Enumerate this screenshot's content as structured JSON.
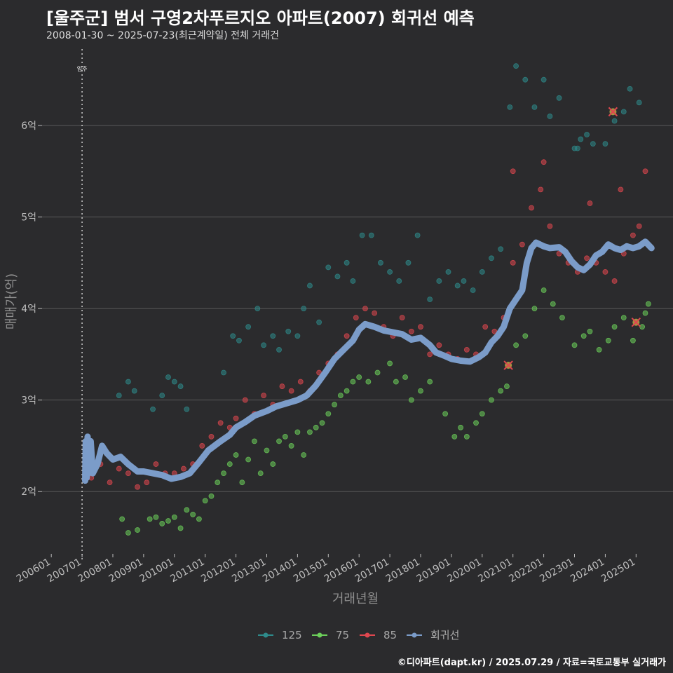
{
  "header": {
    "title": "[울주군] 범서 구영2차푸르지오 아파트(2007) 회귀선 예측",
    "subtitle": "2008-01-30 ~ 2025-07-23(최근계약일) 전체 거래건"
  },
  "caption": "©디아파트(dapt.kr) / 2025.07.29 / 자료=국토교통부 실거래가",
  "colors": {
    "background": "#2b2b2d",
    "gridline": "#5a5a5a",
    "s125": "#2e8b8b",
    "s75": "#6ccf5a",
    "s85": "#e0474f",
    "regression": "#7b9cc9"
  },
  "chart_data": {
    "type": "scatter",
    "title": "[울주군] 범서 구영2차푸르지오 아파트(2007) 회귀선 예측",
    "xlabel": "거래년월",
    "ylabel": "매매가(억)",
    "xlim": [
      2005.7,
      2026.2
    ],
    "ylim": [
      1.32,
      6.85
    ],
    "x_ticks": [
      {
        "label": "200601",
        "x": 2006.0
      },
      {
        "label": "200701",
        "x": 2007.0
      },
      {
        "label": "200801",
        "x": 2008.0
      },
      {
        "label": "200901",
        "x": 2009.0
      },
      {
        "label": "201001",
        "x": 2010.0
      },
      {
        "label": "201101",
        "x": 2011.0
      },
      {
        "label": "201201",
        "x": 2012.0
      },
      {
        "label": "201301",
        "x": 2013.0
      },
      {
        "label": "201401",
        "x": 2014.0
      },
      {
        "label": "201501",
        "x": 2015.0
      },
      {
        "label": "201601",
        "x": 2016.0
      },
      {
        "label": "201701",
        "x": 2017.0
      },
      {
        "label": "201801",
        "x": 2018.0
      },
      {
        "label": "201901",
        "x": 2019.0
      },
      {
        "label": "202001",
        "x": 2020.0
      },
      {
        "label": "202101",
        "x": 2021.0
      },
      {
        "label": "202201",
        "x": 2022.0
      },
      {
        "label": "202301",
        "x": 2023.0
      },
      {
        "label": "202401",
        "x": 2024.0
      },
      {
        "label": "202501",
        "x": 2025.0
      }
    ],
    "y_ticks": [
      {
        "label": "2억",
        "y": 2
      },
      {
        "label": "3억",
        "y": 3
      },
      {
        "label": "4억",
        "y": 4
      },
      {
        "label": "5억",
        "y": 5
      },
      {
        "label": "6억",
        "y": 6
      }
    ],
    "grid": true,
    "legend_position": "bottom",
    "annotations": [
      {
        "label": "입주",
        "x": 2007.0
      }
    ],
    "highlights": [
      {
        "series": "85",
        "x": 2020.85,
        "y": 3.38
      },
      {
        "series": "85",
        "x": 2024.25,
        "y": 6.15
      },
      {
        "series": "85",
        "x": 2025.0,
        "y": 3.85
      }
    ],
    "series": [
      {
        "name": "125",
        "color": "#2e8b8b",
        "points": [
          [
            2008.2,
            3.05
          ],
          [
            2008.5,
            3.2
          ],
          [
            2008.7,
            3.1
          ],
          [
            2009.3,
            2.9
          ],
          [
            2009.6,
            3.05
          ],
          [
            2009.8,
            3.25
          ],
          [
            2010.0,
            3.2
          ],
          [
            2010.2,
            3.15
          ],
          [
            2010.4,
            2.9
          ],
          [
            2011.6,
            3.3
          ],
          [
            2011.9,
            3.7
          ],
          [
            2012.1,
            3.65
          ],
          [
            2012.4,
            3.8
          ],
          [
            2012.7,
            4.0
          ],
          [
            2012.9,
            3.6
          ],
          [
            2013.2,
            3.7
          ],
          [
            2013.4,
            3.55
          ],
          [
            2013.7,
            3.75
          ],
          [
            2014.0,
            3.7
          ],
          [
            2014.2,
            4.0
          ],
          [
            2014.4,
            4.25
          ],
          [
            2014.7,
            3.85
          ],
          [
            2015.0,
            4.45
          ],
          [
            2015.3,
            4.35
          ],
          [
            2015.6,
            4.5
          ],
          [
            2015.8,
            4.3
          ],
          [
            2016.1,
            4.8
          ],
          [
            2016.4,
            4.8
          ],
          [
            2016.7,
            4.5
          ],
          [
            2017.0,
            4.4
          ],
          [
            2017.3,
            4.3
          ],
          [
            2017.6,
            4.5
          ],
          [
            2017.9,
            4.8
          ],
          [
            2018.3,
            4.1
          ],
          [
            2018.6,
            4.3
          ],
          [
            2018.9,
            4.4
          ],
          [
            2019.2,
            4.25
          ],
          [
            2019.4,
            4.3
          ],
          [
            2019.7,
            4.2
          ],
          [
            2020.0,
            4.4
          ],
          [
            2020.3,
            4.55
          ],
          [
            2020.6,
            4.65
          ],
          [
            2020.9,
            6.2
          ],
          [
            2021.1,
            6.65
          ],
          [
            2021.4,
            6.5
          ],
          [
            2021.7,
            6.2
          ],
          [
            2022.0,
            6.5
          ],
          [
            2022.2,
            6.1
          ],
          [
            2023.0,
            5.75
          ],
          [
            2023.2,
            5.85
          ],
          [
            2023.4,
            5.9
          ],
          [
            2023.6,
            5.8
          ],
          [
            2024.0,
            5.8
          ],
          [
            2024.3,
            6.05
          ],
          [
            2024.6,
            6.15
          ],
          [
            2024.8,
            6.4
          ],
          [
            2025.1,
            6.25
          ],
          [
            2022.5,
            6.3
          ],
          [
            2023.1,
            5.75
          ]
        ]
      },
      {
        "name": "75",
        "color": "#6ccf5a",
        "points": [
          [
            2008.3,
            1.7
          ],
          [
            2008.5,
            1.55
          ],
          [
            2008.8,
            1.58
          ],
          [
            2009.2,
            1.7
          ],
          [
            2009.4,
            1.72
          ],
          [
            2009.6,
            1.65
          ],
          [
            2009.8,
            1.68
          ],
          [
            2010.0,
            1.72
          ],
          [
            2010.2,
            1.6
          ],
          [
            2010.4,
            1.8
          ],
          [
            2010.6,
            1.75
          ],
          [
            2010.8,
            1.7
          ],
          [
            2011.0,
            1.9
          ],
          [
            2011.2,
            1.95
          ],
          [
            2011.4,
            2.1
          ],
          [
            2011.6,
            2.2
          ],
          [
            2011.8,
            2.3
          ],
          [
            2012.0,
            2.4
          ],
          [
            2012.2,
            2.1
          ],
          [
            2012.4,
            2.35
          ],
          [
            2012.6,
            2.55
          ],
          [
            2012.8,
            2.2
          ],
          [
            2013.0,
            2.45
          ],
          [
            2013.2,
            2.3
          ],
          [
            2013.4,
            2.55
          ],
          [
            2013.6,
            2.6
          ],
          [
            2013.8,
            2.5
          ],
          [
            2014.0,
            2.65
          ],
          [
            2014.2,
            2.4
          ],
          [
            2014.4,
            2.65
          ],
          [
            2014.6,
            2.7
          ],
          [
            2014.8,
            2.75
          ],
          [
            2015.0,
            2.85
          ],
          [
            2015.2,
            2.95
          ],
          [
            2015.4,
            3.05
          ],
          [
            2015.6,
            3.1
          ],
          [
            2015.8,
            3.2
          ],
          [
            2016.0,
            3.25
          ],
          [
            2016.3,
            3.2
          ],
          [
            2016.6,
            3.3
          ],
          [
            2017.0,
            3.4
          ],
          [
            2017.2,
            3.2
          ],
          [
            2017.5,
            3.25
          ],
          [
            2017.7,
            3.0
          ],
          [
            2018.0,
            3.1
          ],
          [
            2018.3,
            3.2
          ],
          [
            2018.8,
            2.85
          ],
          [
            2019.1,
            2.6
          ],
          [
            2019.3,
            2.7
          ],
          [
            2019.5,
            2.6
          ],
          [
            2019.8,
            2.75
          ],
          [
            2020.0,
            2.85
          ],
          [
            2020.3,
            3.0
          ],
          [
            2020.6,
            3.1
          ],
          [
            2020.8,
            3.15
          ],
          [
            2021.1,
            3.6
          ],
          [
            2021.4,
            3.7
          ],
          [
            2021.7,
            4.0
          ],
          [
            2022.0,
            4.2
          ],
          [
            2022.3,
            4.05
          ],
          [
            2022.6,
            3.9
          ],
          [
            2023.0,
            3.6
          ],
          [
            2023.3,
            3.7
          ],
          [
            2023.5,
            3.75
          ],
          [
            2023.8,
            3.55
          ],
          [
            2024.1,
            3.65
          ],
          [
            2024.3,
            3.8
          ],
          [
            2024.6,
            3.9
          ],
          [
            2024.9,
            3.65
          ],
          [
            2025.2,
            3.8
          ],
          [
            2025.4,
            4.05
          ],
          [
            2025.3,
            3.95
          ]
        ]
      },
      {
        "name": "85",
        "color": "#e0474f",
        "points": [
          [
            2007.3,
            2.15
          ],
          [
            2007.6,
            2.3
          ],
          [
            2007.9,
            2.1
          ],
          [
            2008.2,
            2.25
          ],
          [
            2008.5,
            2.2
          ],
          [
            2008.8,
            2.05
          ],
          [
            2009.1,
            2.1
          ],
          [
            2009.4,
            2.3
          ],
          [
            2009.7,
            2.2
          ],
          [
            2010.0,
            2.2
          ],
          [
            2010.3,
            2.25
          ],
          [
            2010.6,
            2.3
          ],
          [
            2010.9,
            2.5
          ],
          [
            2011.2,
            2.6
          ],
          [
            2011.5,
            2.75
          ],
          [
            2011.8,
            2.7
          ],
          [
            2012.0,
            2.8
          ],
          [
            2012.3,
            3.0
          ],
          [
            2012.6,
            2.85
          ],
          [
            2012.9,
            3.05
          ],
          [
            2013.2,
            2.95
          ],
          [
            2013.5,
            3.15
          ],
          [
            2013.8,
            3.1
          ],
          [
            2014.1,
            3.2
          ],
          [
            2014.4,
            3.1
          ],
          [
            2014.7,
            3.3
          ],
          [
            2015.0,
            3.4
          ],
          [
            2015.3,
            3.5
          ],
          [
            2015.6,
            3.7
          ],
          [
            2015.9,
            3.9
          ],
          [
            2016.2,
            4.0
          ],
          [
            2016.5,
            3.95
          ],
          [
            2016.8,
            3.8
          ],
          [
            2017.1,
            3.7
          ],
          [
            2017.4,
            3.9
          ],
          [
            2017.7,
            3.75
          ],
          [
            2018.0,
            3.8
          ],
          [
            2018.3,
            3.5
          ],
          [
            2018.6,
            3.6
          ],
          [
            2018.9,
            3.5
          ],
          [
            2019.2,
            3.45
          ],
          [
            2019.5,
            3.55
          ],
          [
            2019.8,
            3.5
          ],
          [
            2020.1,
            3.8
          ],
          [
            2020.4,
            3.75
          ],
          [
            2020.7,
            3.9
          ],
          [
            2021.0,
            4.5
          ],
          [
            2021.3,
            4.7
          ],
          [
            2021.6,
            5.1
          ],
          [
            2021.9,
            5.3
          ],
          [
            2022.2,
            4.9
          ],
          [
            2022.5,
            4.6
          ],
          [
            2022.8,
            4.5
          ],
          [
            2023.1,
            4.4
          ],
          [
            2023.4,
            4.55
          ],
          [
            2023.7,
            4.5
          ],
          [
            2024.0,
            4.4
          ],
          [
            2024.3,
            4.3
          ],
          [
            2024.6,
            4.6
          ],
          [
            2024.9,
            4.8
          ],
          [
            2025.1,
            4.9
          ],
          [
            2025.3,
            5.5
          ],
          [
            2021.0,
            5.5
          ],
          [
            2022.0,
            5.6
          ],
          [
            2023.5,
            5.15
          ],
          [
            2024.5,
            5.3
          ]
        ]
      }
    ],
    "regression": {
      "name": "회귀선",
      "color": "#7b9cc9",
      "points": [
        [
          2007.1,
          2.12
        ],
        [
          2007.12,
          2.55
        ],
        [
          2007.15,
          2.15
        ],
        [
          2007.18,
          2.6
        ],
        [
          2007.22,
          2.2
        ],
        [
          2007.28,
          2.55
        ],
        [
          2007.35,
          2.2
        ],
        [
          2007.5,
          2.3
        ],
        [
          2007.65,
          2.5
        ],
        [
          2007.8,
          2.42
        ],
        [
          2008.0,
          2.35
        ],
        [
          2008.25,
          2.38
        ],
        [
          2008.5,
          2.3
        ],
        [
          2008.8,
          2.22
        ],
        [
          2009.0,
          2.22
        ],
        [
          2009.3,
          2.2
        ],
        [
          2009.6,
          2.18
        ],
        [
          2009.9,
          2.14
        ],
        [
          2010.2,
          2.16
        ],
        [
          2010.5,
          2.2
        ],
        [
          2010.8,
          2.32
        ],
        [
          2011.1,
          2.45
        ],
        [
          2011.5,
          2.55
        ],
        [
          2011.8,
          2.62
        ],
        [
          2012.0,
          2.7
        ],
        [
          2012.3,
          2.76
        ],
        [
          2012.6,
          2.83
        ],
        [
          2013.0,
          2.88
        ],
        [
          2013.3,
          2.93
        ],
        [
          2013.6,
          2.96
        ],
        [
          2014.0,
          3.0
        ],
        [
          2014.3,
          3.05
        ],
        [
          2014.6,
          3.16
        ],
        [
          2014.9,
          3.3
        ],
        [
          2015.2,
          3.45
        ],
        [
          2015.5,
          3.55
        ],
        [
          2015.8,
          3.65
        ],
        [
          2016.0,
          3.77
        ],
        [
          2016.2,
          3.83
        ],
        [
          2016.5,
          3.8
        ],
        [
          2016.8,
          3.76
        ],
        [
          2017.1,
          3.74
        ],
        [
          2017.4,
          3.72
        ],
        [
          2017.7,
          3.66
        ],
        [
          2018.0,
          3.68
        ],
        [
          2018.3,
          3.6
        ],
        [
          2018.5,
          3.52
        ],
        [
          2018.8,
          3.48
        ],
        [
          2019.0,
          3.45
        ],
        [
          2019.3,
          3.43
        ],
        [
          2019.6,
          3.42
        ],
        [
          2019.9,
          3.47
        ],
        [
          2020.1,
          3.52
        ],
        [
          2020.3,
          3.63
        ],
        [
          2020.5,
          3.7
        ],
        [
          2020.7,
          3.8
        ],
        [
          2020.9,
          4.0
        ],
        [
          2021.1,
          4.1
        ],
        [
          2021.3,
          4.2
        ],
        [
          2021.45,
          4.5
        ],
        [
          2021.6,
          4.66
        ],
        [
          2021.75,
          4.72
        ],
        [
          2022.0,
          4.68
        ],
        [
          2022.2,
          4.66
        ],
        [
          2022.5,
          4.67
        ],
        [
          2022.7,
          4.62
        ],
        [
          2022.9,
          4.52
        ],
        [
          2023.1,
          4.45
        ],
        [
          2023.3,
          4.42
        ],
        [
          2023.5,
          4.48
        ],
        [
          2023.7,
          4.58
        ],
        [
          2023.9,
          4.62
        ],
        [
          2024.1,
          4.7
        ],
        [
          2024.3,
          4.66
        ],
        [
          2024.5,
          4.64
        ],
        [
          2024.7,
          4.68
        ],
        [
          2024.9,
          4.66
        ],
        [
          2025.1,
          4.68
        ],
        [
          2025.3,
          4.73
        ],
        [
          2025.5,
          4.66
        ]
      ]
    }
  }
}
